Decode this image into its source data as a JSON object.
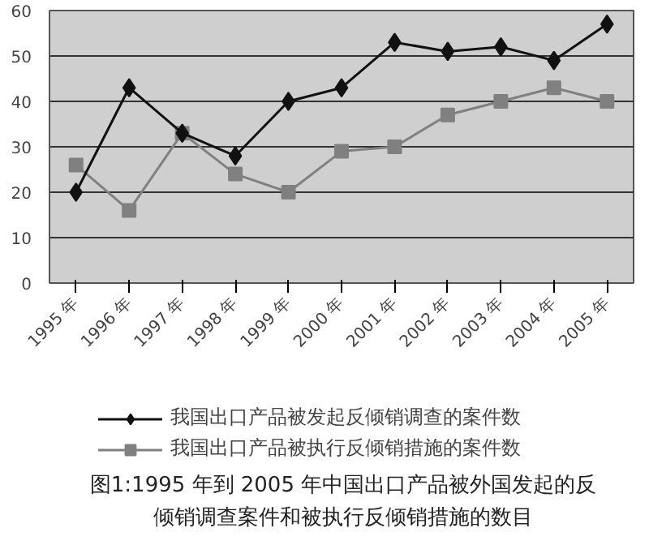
{
  "chart_data": {
    "type": "line",
    "title": "图1:1995 年到 2005 年中国出口产品被外国发起的反倾销调查案件和被执行反倾销措施的数目",
    "categories": [
      "1995 年",
      "1996 年",
      "1997 年",
      "1998 年",
      "1999 年",
      "2000 年",
      "2001 年",
      "2002 年",
      "2003 年",
      "2004 年",
      "2005 年"
    ],
    "series": [
      {
        "name": "我国出口产品被发起反倾销调查的案件数",
        "color": "#111111",
        "marker": "diamond",
        "values": [
          20,
          43,
          33,
          28,
          40,
          43,
          53,
          51,
          52,
          49,
          57
        ]
      },
      {
        "name": "我国出口产品被执行反倾销措施的案件数",
        "color": "#808080",
        "marker": "square",
        "values": [
          26,
          16,
          33,
          24,
          20,
          29,
          30,
          37,
          40,
          43,
          40
        ]
      }
    ],
    "ylim": [
      0,
      60
    ],
    "yticks": [
      0,
      10,
      20,
      30,
      40,
      50,
      60
    ],
    "grid": "y",
    "legend": "bottom",
    "line_style": "solid"
  }
}
